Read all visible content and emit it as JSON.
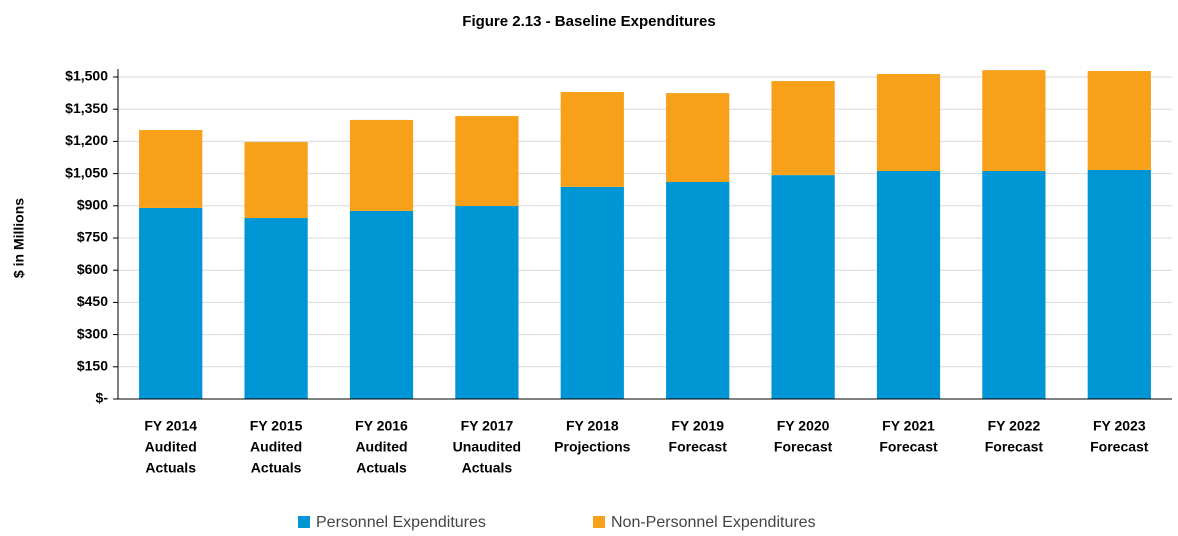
{
  "chart_data": {
    "type": "stacked_bar",
    "title": "Figure 2.13 - Baseline Expenditures",
    "y_label": "$ in Millions",
    "categories": [
      [
        "FY 2014",
        "Audited",
        "Actuals"
      ],
      [
        "FY 2015",
        "Audited",
        "Actuals"
      ],
      [
        "FY 2016",
        "Audited",
        "Actuals"
      ],
      [
        "FY 2017",
        "Unaudited",
        "Actuals"
      ],
      [
        "FY 2018",
        "Projections"
      ],
      [
        "FY 2019",
        "Forecast"
      ],
      [
        "FY 2020",
        "Forecast"
      ],
      [
        "FY 2021",
        "Forecast"
      ],
      [
        "FY 2022",
        "Forecast"
      ],
      [
        "FY 2023",
        "Forecast"
      ]
    ],
    "series": [
      {
        "name": "Personnel Expenditures",
        "color": "#0096d6",
        "values": [
          890,
          843,
          876,
          899,
          988,
          1011,
          1043,
          1062,
          1062,
          1067
        ]
      },
      {
        "name": "Non-Personnel Expenditures",
        "color": "#f7a11a",
        "values": [
          363,
          354,
          424,
          419,
          442,
          414,
          438,
          452,
          470,
          461
        ]
      }
    ],
    "ylim": [
      0,
      1500
    ],
    "yticks": [
      {
        "value": 0,
        "label": "$-"
      },
      {
        "value": 150,
        "label": "$150"
      },
      {
        "value": 300,
        "label": "$300"
      },
      {
        "value": 450,
        "label": "$450"
      },
      {
        "value": 600,
        "label": "$600"
      },
      {
        "value": 750,
        "label": "$750"
      },
      {
        "value": 900,
        "label": "$900"
      },
      {
        "value": 1050,
        "label": "$1,050"
      },
      {
        "value": 1200,
        "label": "$1,200"
      },
      {
        "value": 1350,
        "label": "$1,350"
      },
      {
        "value": 1500,
        "label": "$1,500"
      }
    ],
    "grid": true,
    "legend": "bottom"
  }
}
